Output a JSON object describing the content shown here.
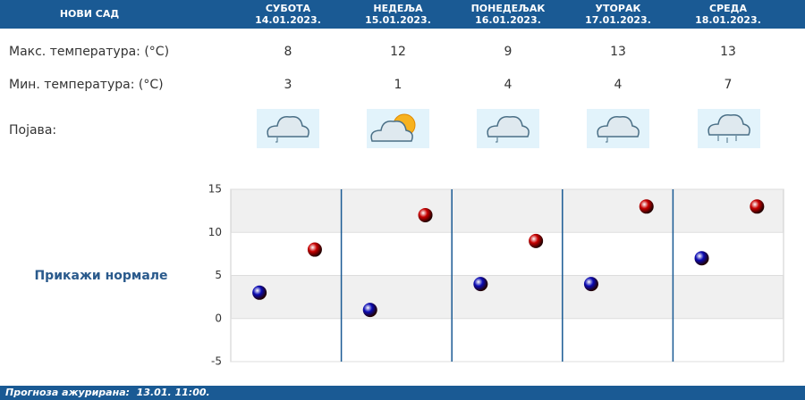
{
  "header": {
    "city": "НОВИ САД",
    "days": [
      {
        "name": "СУБОТА",
        "date": "14.01.2023."
      },
      {
        "name": "НЕДЕЉА",
        "date": "15.01.2023."
      },
      {
        "name": "ПОНЕДЕЉАК",
        "date": "16.01.2023."
      },
      {
        "name": "УТОРАК",
        "date": "17.01.2023."
      },
      {
        "name": "СРЕДА",
        "date": "18.01.2023."
      }
    ]
  },
  "table": {
    "rows": [
      {
        "label": "Макс. температура: (°C)",
        "values": [
          8,
          12,
          9,
          13,
          13
        ]
      },
      {
        "label": "Мин. температура: (°C)",
        "values": [
          3,
          1,
          4,
          4,
          7
        ]
      },
      {
        "label": "Појава:"
      }
    ]
  },
  "chart_data": {
    "type": "scatter",
    "series": [
      {
        "color": "#0a0ab4",
        "values": [
          3,
          1,
          4,
          4,
          7
        ]
      },
      {
        "color": "#c80000",
        "values": [
          8,
          12,
          9,
          13,
          13
        ]
      }
    ],
    "ylim": [
      -5,
      15
    ],
    "yticks": [
      -5,
      0,
      5,
      10,
      15
    ],
    "grid": true
  },
  "button": "Прикажи нормале",
  "footer": "Прогноза ажурирана:  13.01. 11:00."
}
